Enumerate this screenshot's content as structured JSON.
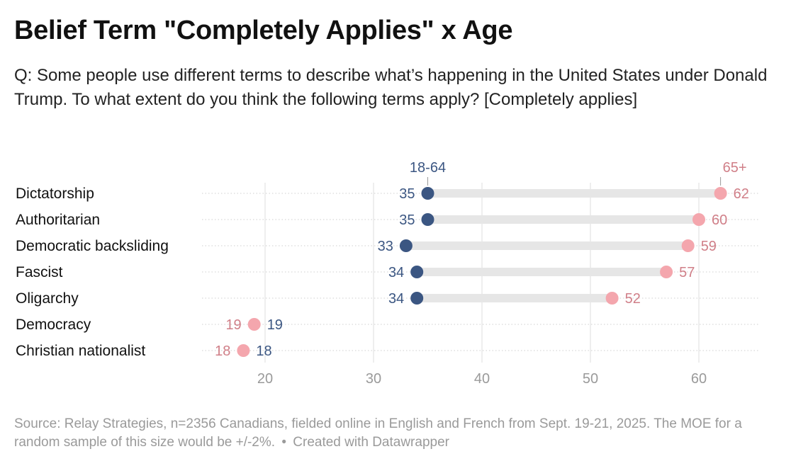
{
  "title": "Belief Term \"Completely Applies\" x Age",
  "subtitle": "Q: Some people use different terms to describe what’s happening in the United States under Donald Trump. To what extent do you think the following terms apply? [Completely applies]",
  "notes": {
    "source": "Source: Relay Strategies, n=2356 Canadians, fielded online in English and French from Sept. 19-21, 2025. The MOE for a random sample of this size would be +/-2%.",
    "separator": "•",
    "credit": "Created with Datawrapper"
  },
  "colors": {
    "group_a": "#3b5682",
    "group_b": "#f4a6ad",
    "group_b_text": "#d07f88",
    "range_bar": "#e6e6e6",
    "gridline": "#dddddd",
    "row_dots": "#cfcfcf",
    "tick_text": "#9a9a9a"
  },
  "chart_data": {
    "type": "range-dot",
    "title": "Belief Term \"Completely Applies\" x Age",
    "series_names": [
      "18-64",
      "65+"
    ],
    "categories": [
      "Dictatorship",
      "Authoritarian",
      "Democratic backsliding",
      "Fascist",
      "Oligarchy",
      "Democracy",
      "Christian nationalist"
    ],
    "series": [
      {
        "name": "18-64",
        "values": [
          35,
          35,
          33,
          34,
          34,
          19,
          18
        ]
      },
      {
        "name": "65+",
        "values": [
          62,
          60,
          59,
          57,
          52,
          19,
          18
        ]
      }
    ],
    "x_ticks": [
      20,
      30,
      40,
      50,
      60
    ],
    "xlim": [
      13,
      67
    ],
    "grid": true,
    "legend": "inline-top"
  }
}
